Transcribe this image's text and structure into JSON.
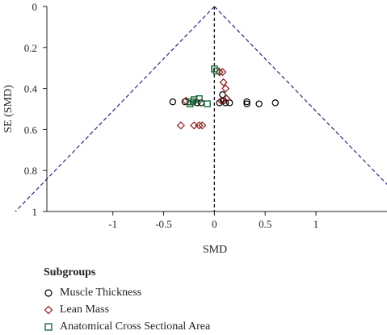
{
  "chart_data": {
    "type": "scatter",
    "title": "",
    "xlabel": "SMD",
    "ylabel": "SE (SMD)",
    "xlim": [
      -1.65,
      1.7
    ],
    "ylim": [
      0,
      1
    ],
    "y_inverted": true,
    "x_ticks": [
      -1,
      -0.5,
      0,
      0.5,
      1
    ],
    "x_tick_labels": [
      "-1",
      "-0.5",
      "0",
      "0.5",
      "1"
    ],
    "y_ticks": [
      0,
      0.2,
      0.4,
      0.6,
      0.8,
      1
    ],
    "y_tick_labels": [
      "0",
      "0.2",
      "0.4",
      "0.6",
      "0.8",
      "1"
    ],
    "reference_line_x": 0,
    "funnel_slope_z": 1.96,
    "grid": false,
    "legend": {
      "title": "Subgroups",
      "placement": "bottom-left"
    },
    "series": [
      {
        "name": "Muscle Thickness",
        "marker": "circle",
        "color": "#000000",
        "points": [
          {
            "x": -0.41,
            "y": 0.465
          },
          {
            "x": -0.29,
            "y": 0.465
          },
          {
            "x": -0.21,
            "y": 0.465
          },
          {
            "x": -0.17,
            "y": 0.47
          },
          {
            "x": -0.13,
            "y": 0.47
          },
          {
            "x": 0.05,
            "y": 0.47
          },
          {
            "x": 0.08,
            "y": 0.43
          },
          {
            "x": 0.09,
            "y": 0.46
          },
          {
            "x": 0.11,
            "y": 0.47
          },
          {
            "x": 0.15,
            "y": 0.47
          },
          {
            "x": 0.32,
            "y": 0.465
          },
          {
            "x": 0.32,
            "y": 0.475
          },
          {
            "x": 0.44,
            "y": 0.475
          },
          {
            "x": 0.6,
            "y": 0.47
          }
        ]
      },
      {
        "name": "Lean Mass",
        "marker": "diamond",
        "color": "#8b1a1a",
        "points": [
          {
            "x": 0.05,
            "y": 0.32
          },
          {
            "x": 0.08,
            "y": 0.32
          },
          {
            "x": 0.09,
            "y": 0.37
          },
          {
            "x": 0.11,
            "y": 0.4
          },
          {
            "x": 0.12,
            "y": 0.45
          },
          {
            "x": 0.07,
            "y": 0.46
          },
          {
            "x": -0.28,
            "y": 0.46
          },
          {
            "x": -0.33,
            "y": 0.58
          },
          {
            "x": -0.2,
            "y": 0.58
          },
          {
            "x": -0.15,
            "y": 0.58
          },
          {
            "x": -0.12,
            "y": 0.58
          }
        ]
      },
      {
        "name": "Anatomical Cross Sectional Area",
        "marker": "square",
        "color": "#1e6b3c",
        "points": [
          {
            "x": 0.0,
            "y": 0.305
          },
          {
            "x": 0.02,
            "y": 0.315
          },
          {
            "x": -0.2,
            "y": 0.455
          },
          {
            "x": -0.15,
            "y": 0.45
          },
          {
            "x": -0.23,
            "y": 0.465
          },
          {
            "x": -0.24,
            "y": 0.475
          },
          {
            "x": -0.07,
            "y": 0.475
          }
        ]
      }
    ]
  }
}
